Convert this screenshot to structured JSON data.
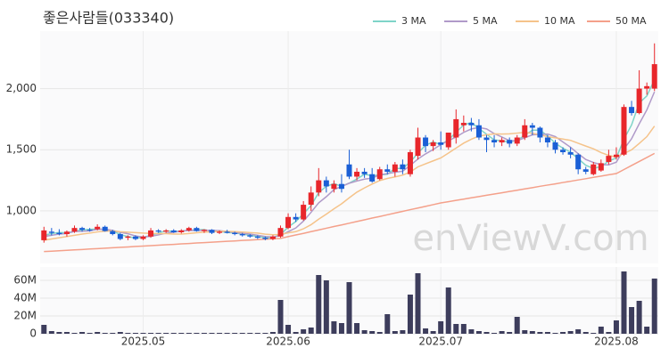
{
  "chart_data": {
    "type": "candlestick",
    "title": "좋은사람들(033340)",
    "watermark": "enViewV.com",
    "up_color": "#e8262b",
    "down_color": "#1a5fd6",
    "grid": true,
    "legend": "top-right",
    "categories": [
      null,
      null,
      null,
      null,
      null,
      null,
      null,
      null,
      null,
      null,
      null,
      null,
      null,
      "2025.05",
      null,
      null,
      null,
      null,
      null,
      null,
      null,
      null,
      null,
      null,
      null,
      null,
      null,
      null,
      null,
      null,
      null,
      null,
      "2025.06",
      null,
      null,
      null,
      null,
      null,
      null,
      null,
      null,
      null,
      null,
      null,
      null,
      null,
      null,
      null,
      null,
      null,
      null,
      null,
      "2025.07",
      null,
      null,
      null,
      null,
      null,
      null,
      null,
      null,
      null,
      null,
      null,
      null,
      null,
      null,
      null,
      null,
      null,
      null,
      null,
      null,
      null,
      null,
      "2025.08",
      null,
      null,
      null,
      null,
      null
    ],
    "open": [
      760,
      830,
      820,
      810,
      830,
      860,
      845,
      850,
      870,
      835,
      810,
      780,
      790,
      770,
      790,
      840,
      830,
      840,
      825,
      840,
      860,
      835,
      845,
      820,
      830,
      820,
      810,
      800,
      790,
      780,
      770,
      790,
      860,
      950,
      930,
      1050,
      1150,
      1250,
      1180,
      1220,
      1380,
      1280,
      1320,
      1300,
      1260,
      1340,
      1320,
      1380,
      1300,
      1450,
      1600,
      1530,
      1560,
      1520,
      1600,
      1700,
      1720,
      1700,
      1600,
      1580,
      1560,
      1580,
      1550,
      1600,
      1700,
      1680,
      1600,
      1560,
      1500,
      1480,
      1460,
      1340,
      1300,
      1330,
      1400,
      1440,
      1460,
      1850,
      1800,
      2000,
      2000
    ],
    "high": [
      870,
      860,
      850,
      840,
      880,
      870,
      860,
      890,
      880,
      845,
      820,
      800,
      800,
      800,
      860,
      850,
      850,
      850,
      850,
      870,
      870,
      850,
      850,
      840,
      845,
      830,
      820,
      810,
      800,
      790,
      800,
      880,
      980,
      980,
      1080,
      1200,
      1350,
      1280,
      1250,
      1300,
      1500,
      1350,
      1350,
      1350,
      1360,
      1380,
      1400,
      1420,
      1500,
      1680,
      1620,
      1580,
      1650,
      1640,
      1830,
      1780,
      1760,
      1750,
      1620,
      1620,
      1600,
      1600,
      1620,
      1750,
      1720,
      1690,
      1620,
      1580,
      1520,
      1520,
      1470,
      1360,
      1400,
      1420,
      1500,
      1520,
      1870,
      1900,
      2150,
      2050,
      2370
    ],
    "low": [
      740,
      800,
      800,
      790,
      820,
      830,
      830,
      840,
      830,
      800,
      760,
      760,
      760,
      760,
      780,
      820,
      820,
      820,
      815,
      830,
      830,
      820,
      810,
      810,
      815,
      800,
      790,
      780,
      770,
      760,
      760,
      780,
      850,
      910,
      920,
      1000,
      1120,
      1150,
      1150,
      1150,
      1260,
      1250,
      1270,
      1230,
      1250,
      1300,
      1280,
      1300,
      1280,
      1420,
      1480,
      1490,
      1500,
      1500,
      1550,
      1650,
      1650,
      1580,
      1480,
      1520,
      1530,
      1520,
      1530,
      1580,
      1620,
      1560,
      1520,
      1470,
      1460,
      1430,
      1300,
      1300,
      1290,
      1320,
      1380,
      1420,
      1450,
      1780,
      1790,
      1950,
      1980
    ],
    "close": [
      840,
      820,
      810,
      830,
      860,
      845,
      840,
      870,
      835,
      810,
      770,
      790,
      770,
      790,
      840,
      830,
      840,
      825,
      840,
      860,
      835,
      845,
      820,
      830,
      820,
      810,
      800,
      790,
      780,
      770,
      790,
      860,
      950,
      930,
      1050,
      1150,
      1250,
      1200,
      1220,
      1180,
      1280,
      1320,
      1300,
      1240,
      1340,
      1320,
      1380,
      1340,
      1480,
      1600,
      1530,
      1560,
      1540,
      1640,
      1750,
      1720,
      1700,
      1600,
      1580,
      1560,
      1580,
      1550,
      1600,
      1700,
      1680,
      1600,
      1560,
      1500,
      1480,
      1460,
      1340,
      1320,
      1380,
      1390,
      1450,
      1460,
      1850,
      1800,
      2000,
      2020,
      2200
    ],
    "ylim": [
      570,
      2470
    ],
    "yticks": [
      {
        "value": 1000,
        "label": "1,000"
      },
      {
        "value": 1500,
        "label": "1,500"
      },
      {
        "value": 2000,
        "label": "2,000"
      }
    ],
    "series": [
      {
        "name": "3 MA",
        "color": "#7fd4c8",
        "values": [
          800,
          815,
          823,
          820,
          833,
          845,
          848,
          852,
          848,
          838,
          805,
          790,
          777,
          783,
          800,
          820,
          837,
          832,
          835,
          842,
          845,
          847,
          833,
          832,
          823,
          820,
          810,
          800,
          790,
          780,
          780,
          807,
          867,
          913,
          977,
          1043,
          1150,
          1200,
          1223,
          1200,
          1227,
          1260,
          1300,
          1287,
          1293,
          1300,
          1347,
          1347,
          1400,
          1473,
          1537,
          1563,
          1543,
          1580,
          1643,
          1703,
          1723,
          1673,
          1627,
          1580,
          1573,
          1563,
          1577,
          1617,
          1660,
          1660,
          1613,
          1553,
          1513,
          1480,
          1427,
          1373,
          1347,
          1363,
          1407,
          1433,
          1587,
          1703,
          1883,
          1940,
          2073
        ]
      },
      {
        "name": "5 MA",
        "color": "#b09ac9",
        "values": [
          790,
          800,
          810,
          815,
          832,
          833,
          837,
          849,
          850,
          840,
          825,
          813,
          795,
          786,
          792,
          804,
          818,
          825,
          835,
          839,
          840,
          841,
          840,
          838,
          830,
          825,
          816,
          810,
          800,
          790,
          786,
          798,
          830,
          860,
          916,
          988,
          1066,
          1116,
          1174,
          1200,
          1226,
          1244,
          1260,
          1268,
          1296,
          1304,
          1316,
          1324,
          1372,
          1424,
          1466,
          1502,
          1542,
          1574,
          1604,
          1642,
          1670,
          1682,
          1670,
          1632,
          1604,
          1574,
          1574,
          1598,
          1622,
          1626,
          1628,
          1608,
          1564,
          1520,
          1468,
          1420,
          1396,
          1378,
          1376,
          1398,
          1506,
          1590,
          1712,
          1826,
          1974
        ]
      },
      {
        "name": "10 MA",
        "color": "#f5c38a",
        "values": [
          760,
          770,
          780,
          790,
          800,
          810,
          818,
          828,
          834,
          836,
          829,
          826,
          822,
          818,
          816,
          814,
          814,
          810,
          810,
          815,
          821,
          826,
          829,
          833,
          832,
          830,
          827,
          822,
          818,
          809,
          805,
          807,
          820,
          830,
          853,
          887,
          932,
          973,
          1017,
          1058,
          1107,
          1153,
          1188,
          1219,
          1248,
          1265,
          1278,
          1292,
          1318,
          1360,
          1385,
          1409,
          1433,
          1473,
          1514,
          1554,
          1586,
          1612,
          1622,
          1630,
          1628,
          1630,
          1636,
          1642,
          1635,
          1623,
          1607,
          1597,
          1587,
          1577,
          1553,
          1530,
          1508,
          1477,
          1454,
          1440,
          1469,
          1499,
          1551,
          1607,
          1693
        ]
      },
      {
        "name": "50 MA",
        "color": "#f4a08a",
        "values": [
          667,
          670,
          674,
          677,
          681,
          684,
          688,
          691,
          695,
          698,
          702,
          705,
          709,
          712,
          716,
          719,
          723,
          726,
          730,
          733,
          737,
          740,
          744,
          747,
          751,
          754,
          758,
          761,
          765,
          768,
          772,
          775,
          789,
          803,
          816,
          830,
          844,
          858,
          872,
          885,
          899,
          913,
          927,
          941,
          954,
          968,
          982,
          996,
          1010,
          1023,
          1037,
          1051,
          1065,
          1075,
          1086,
          1096,
          1107,
          1117,
          1128,
          1138,
          1148,
          1159,
          1169,
          1180,
          1190,
          1201,
          1211,
          1221,
          1232,
          1242,
          1253,
          1263,
          1274,
          1284,
          1295,
          1305,
          1338,
          1371,
          1404,
          1437,
          1470
        ]
      }
    ],
    "volume": {
      "color": "#3d3d5c",
      "values": [
        10,
        3,
        2,
        2,
        1,
        2,
        1,
        2,
        1,
        1,
        2,
        1,
        1,
        1,
        1,
        1,
        1,
        1,
        1,
        1,
        1,
        1,
        1,
        1,
        1,
        1,
        1,
        1,
        1,
        1,
        2,
        38,
        10,
        2,
        5,
        7,
        66,
        60,
        14,
        12,
        58,
        12,
        4,
        3,
        2,
        22,
        3,
        4,
        44,
        68,
        6,
        3,
        14,
        52,
        11,
        11,
        5,
        3,
        2,
        1,
        3,
        2,
        19,
        4,
        3,
        2,
        2,
        1,
        2,
        3,
        5,
        2,
        1,
        8,
        2,
        15,
        70,
        30,
        37,
        8,
        62
      ],
      "ylim": [
        0,
        75
      ],
      "yticks": [
        0,
        {
          "value": 20,
          "label": "20M"
        },
        {
          "value": 40,
          "label": "40M"
        },
        {
          "value": 60,
          "label": "60M"
        }
      ]
    }
  }
}
